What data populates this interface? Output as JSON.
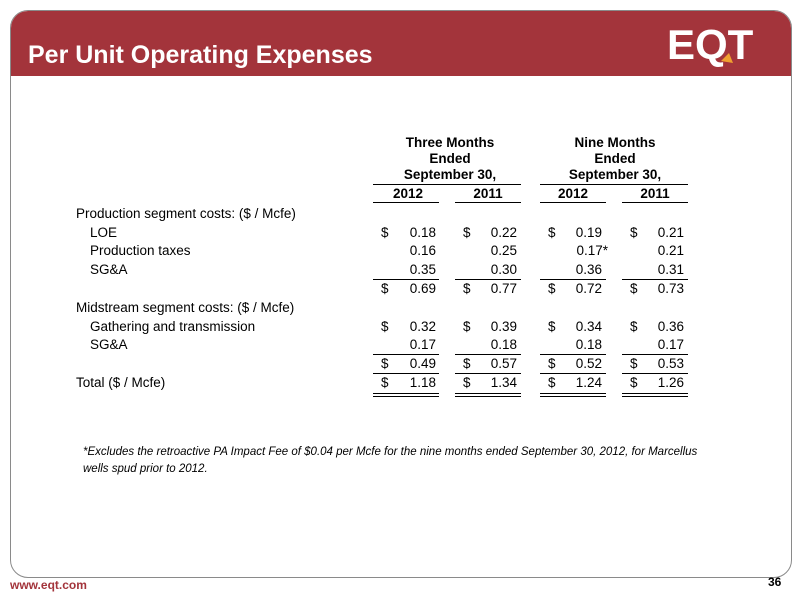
{
  "slide": {
    "title": "Per Unit Operating Expenses",
    "logo_text": "EQT",
    "url": "www.eqt.com",
    "page_number": "36",
    "brand_color": "#a3343b",
    "logo_accent": "#f0a030"
  },
  "table": {
    "groups": [
      {
        "line1": "Three Months",
        "line2": "Ended",
        "line3": "September 30,"
      },
      {
        "line1": "Nine Months",
        "line2": "Ended",
        "line3": "September 30,"
      }
    ],
    "years": [
      "2012",
      "2011",
      "2012",
      "2011"
    ],
    "rows": [
      {
        "label": "Production segment costs:  ($ / Mcfe)",
        "values": [
          "",
          "",
          "",
          ""
        ],
        "dollars": [
          "",
          "",
          "",
          ""
        ]
      },
      {
        "label": "LOE",
        "values": [
          "0.18",
          "0.22",
          "0.19",
          "0.21"
        ],
        "dollars": [
          "$",
          "$",
          "$",
          "$"
        ]
      },
      {
        "label": "Production taxes",
        "values": [
          "0.16",
          "0.25",
          "0.17*",
          "0.21"
        ],
        "dollars": [
          "",
          "",
          "",
          ""
        ]
      },
      {
        "label": "SG&A",
        "values": [
          "0.35",
          "0.30",
          "0.36",
          "0.31"
        ],
        "dollars": [
          "",
          "",
          "",
          ""
        ]
      },
      {
        "label": "",
        "values": [
          "0.69",
          "0.77",
          "0.72",
          "0.73"
        ],
        "dollars": [
          "$",
          "$",
          "$",
          "$"
        ]
      },
      {
        "label": "Midstream segment costs: ($ / Mcfe)",
        "values": [
          "",
          "",
          "",
          ""
        ],
        "dollars": [
          "",
          "",
          "",
          ""
        ]
      },
      {
        "label": "Gathering and transmission",
        "values": [
          "0.32",
          "0.39",
          "0.34",
          "0.36"
        ],
        "dollars": [
          "$",
          "$",
          "$",
          "$"
        ]
      },
      {
        "label": "SG&A",
        "values": [
          "0.17",
          "0.18",
          "0.18",
          "0.17"
        ],
        "dollars": [
          "",
          "",
          "",
          ""
        ]
      },
      {
        "label": "",
        "values": [
          "0.49",
          "0.57",
          "0.52",
          "0.53"
        ],
        "dollars": [
          "$",
          "$",
          "$",
          "$"
        ]
      },
      {
        "label": "Total ($ / Mcfe)",
        "values": [
          "1.18",
          "1.34",
          "1.24",
          "1.26"
        ],
        "dollars": [
          "$",
          "$",
          "$",
          "$"
        ]
      }
    ]
  },
  "footnote": "*Excludes the retroactive PA Impact Fee of $0.04 per Mcfe for the nine months ended September 30, 2012, for Marcellus wells spud prior to 2012."
}
